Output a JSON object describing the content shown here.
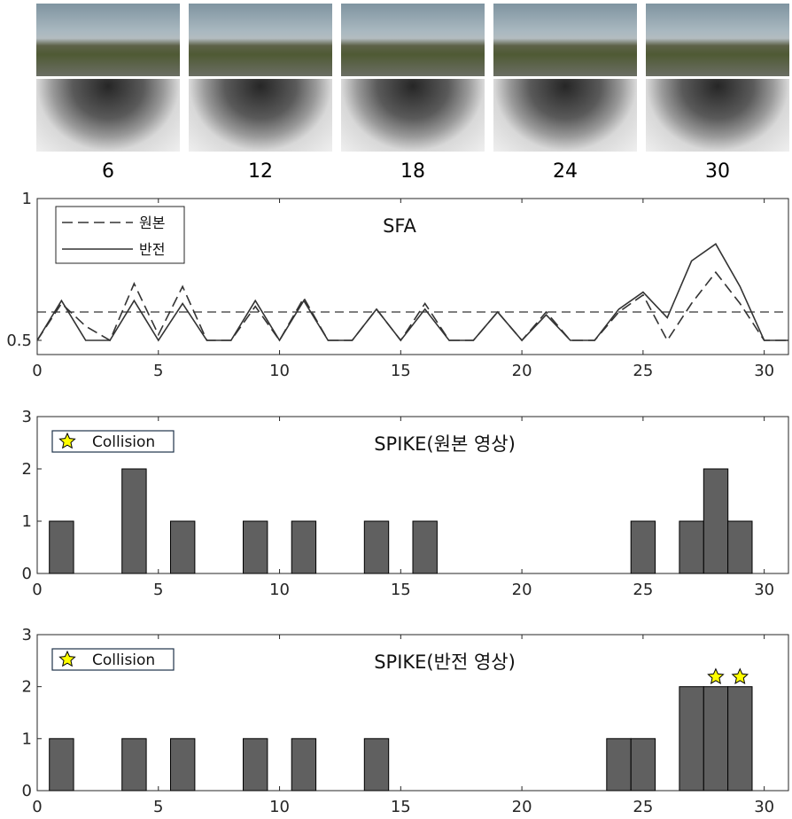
{
  "frames": [
    {
      "label": "6"
    },
    {
      "label": "12"
    },
    {
      "label": "18"
    },
    {
      "label": "24"
    },
    {
      "label": "30"
    }
  ],
  "chart_data": [
    {
      "type": "line",
      "title": "SFA",
      "xlim": [
        0,
        31
      ],
      "ylim": [
        0.45,
        1.0
      ],
      "xticks": [
        0,
        5,
        10,
        15,
        20,
        25,
        30
      ],
      "yticks": [
        0.5,
        1
      ],
      "threshold": 0.6,
      "x": [
        0,
        1,
        2,
        3,
        4,
        5,
        6,
        7,
        8,
        9,
        10,
        11,
        12,
        13,
        14,
        15,
        16,
        17,
        18,
        19,
        20,
        21,
        22,
        23,
        24,
        25,
        26,
        27,
        28,
        29,
        30,
        31
      ],
      "series": [
        {
          "name": "원본",
          "style": "dashed",
          "values": [
            0.5,
            0.63,
            0.55,
            0.5,
            0.7,
            0.52,
            0.69,
            0.5,
            0.5,
            0.62,
            0.5,
            0.65,
            0.5,
            0.5,
            0.61,
            0.5,
            0.63,
            0.5,
            0.5,
            0.6,
            0.5,
            0.6,
            0.5,
            0.5,
            0.6,
            0.66,
            0.5,
            0.63,
            0.74,
            0.63,
            0.5,
            0.5
          ]
        },
        {
          "name": "반전",
          "style": "solid",
          "values": [
            0.5,
            0.64,
            0.5,
            0.5,
            0.64,
            0.5,
            0.63,
            0.5,
            0.5,
            0.64,
            0.5,
            0.64,
            0.5,
            0.5,
            0.61,
            0.5,
            0.61,
            0.5,
            0.5,
            0.6,
            0.5,
            0.59,
            0.5,
            0.5,
            0.61,
            0.67,
            0.58,
            0.78,
            0.84,
            0.69,
            0.5,
            0.5
          ]
        }
      ]
    },
    {
      "type": "bar",
      "title": "SPIKE(원본 영상)",
      "legend": "Collision",
      "xlim": [
        0,
        31
      ],
      "ylim": [
        0,
        3
      ],
      "xticks": [
        0,
        5,
        10,
        15,
        20,
        25,
        30
      ],
      "yticks": [
        0,
        1,
        2,
        3
      ],
      "bar_color": "#606060",
      "bars": [
        {
          "x": 1,
          "y": 1
        },
        {
          "x": 4,
          "y": 2
        },
        {
          "x": 6,
          "y": 1
        },
        {
          "x": 9,
          "y": 1
        },
        {
          "x": 11,
          "y": 1
        },
        {
          "x": 14,
          "y": 1
        },
        {
          "x": 16,
          "y": 1
        },
        {
          "x": 25,
          "y": 1
        },
        {
          "x": 27,
          "y": 1
        },
        {
          "x": 28,
          "y": 2
        },
        {
          "x": 29,
          "y": 1
        }
      ],
      "collisions": []
    },
    {
      "type": "bar",
      "title": "SPIKE(반전 영상)",
      "legend": "Collision",
      "xlim": [
        0,
        31
      ],
      "ylim": [
        0,
        3
      ],
      "xticks": [
        0,
        5,
        10,
        15,
        20,
        25,
        30
      ],
      "yticks": [
        0,
        1,
        2,
        3
      ],
      "bar_color": "#606060",
      "bars": [
        {
          "x": 1,
          "y": 1
        },
        {
          "x": 4,
          "y": 1
        },
        {
          "x": 6,
          "y": 1
        },
        {
          "x": 9,
          "y": 1
        },
        {
          "x": 11,
          "y": 1
        },
        {
          "x": 14,
          "y": 1
        },
        {
          "x": 24,
          "y": 1
        },
        {
          "x": 25,
          "y": 1
        },
        {
          "x": 27,
          "y": 2
        },
        {
          "x": 28,
          "y": 2
        },
        {
          "x": 29,
          "y": 2
        }
      ],
      "collisions": [
        28,
        29
      ]
    }
  ]
}
